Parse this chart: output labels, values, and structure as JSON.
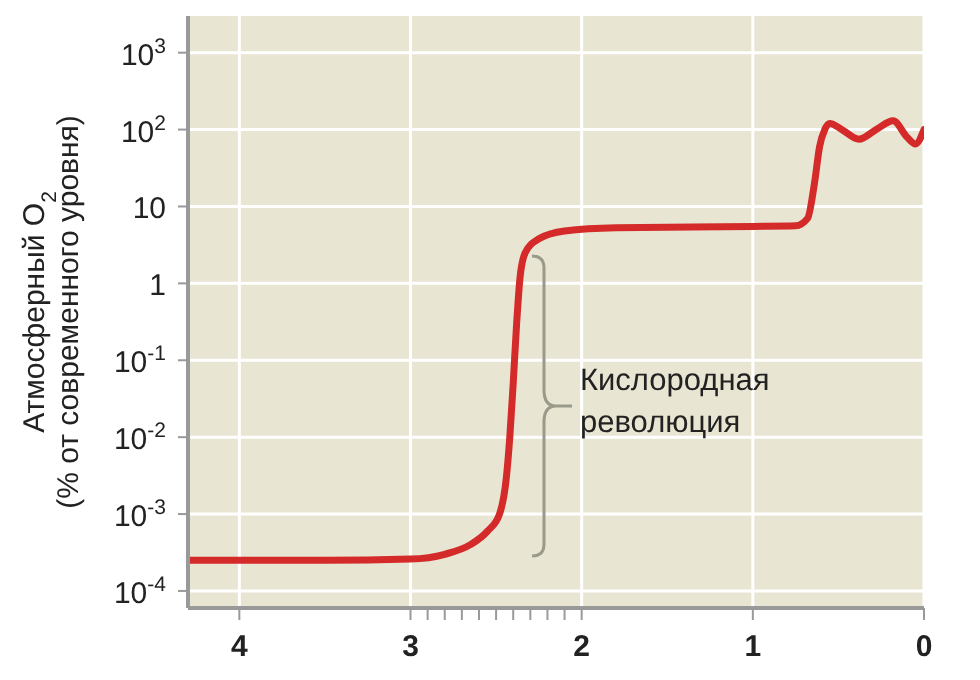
{
  "chart_data": {
    "type": "line",
    "ylabel": "Атмосферный O$_{2}$\n(% от современного уровня)",
    "annotations": [
      "Кислородная\nреволюция"
    ],
    "x": [
      4.3,
      3.5,
      3.0,
      2.8,
      2.65,
      2.55,
      2.48,
      2.44,
      2.42,
      2.4,
      2.38,
      2.36,
      2.33,
      2.25,
      2.1,
      1.8,
      1.0,
      0.75,
      0.68,
      0.64,
      0.61,
      0.58,
      0.55,
      0.48,
      0.38,
      0.28,
      0.18,
      0.1,
      0.05,
      0
    ],
    "series": [
      {
        "color": "#d42a2a",
        "values": [
          0.00025,
          0.00025,
          0.00026,
          0.0003,
          0.0004,
          0.0006,
          0.001,
          0.003,
          0.01,
          0.05,
          0.3,
          1.2,
          2.5,
          3.8,
          4.8,
          5.3,
          5.5,
          5.6,
          7,
          20,
          60,
          100,
          120,
          100,
          75,
          100,
          130,
          80,
          65,
          100
        ]
      }
    ],
    "log": "y",
    "xlim": [
      4.3,
      0
    ],
    "ylim": [
      6e-05,
      3000
    ],
    "xticks": [
      4,
      3,
      {
        "value": 2.9,
        "label": null
      },
      {
        "value": 2.8,
        "label": null
      },
      {
        "value": 2.7,
        "label": null
      },
      {
        "value": 2.6,
        "label": null
      },
      {
        "value": 2.5,
        "label": null
      },
      {
        "value": 2.4,
        "label": null
      },
      {
        "value": 2.3,
        "label": null
      },
      {
        "value": 2.2,
        "label": null
      },
      {
        "value": 2.1,
        "label": null
      },
      2,
      1,
      0
    ],
    "yticks": [
      {
        "value": 0.0001,
        "label": "10$^{-4}$"
      },
      {
        "value": 0.001,
        "label": "10$^{-3}$"
      },
      {
        "value": 0.01,
        "label": "10$^{-2}$"
      },
      {
        "value": 0.1,
        "label": "10$^{-1}$"
      },
      1,
      10,
      {
        "value": 1000,
        "label": "10$^{3}$"
      },
      {
        "value": 100,
        "label": "10$^{2}$"
      }
    ],
    "grid": true,
    "line_style": "solid",
    "marker": "none"
  }
}
